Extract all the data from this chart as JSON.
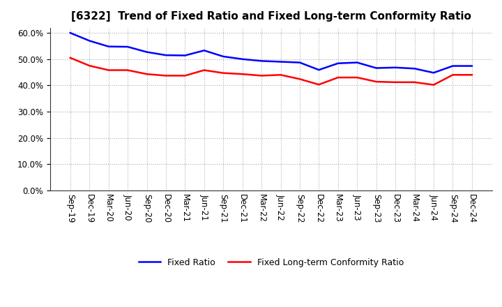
{
  "title": "[6322]  Trend of Fixed Ratio and Fixed Long-term Conformity Ratio",
  "x_labels": [
    "Sep-19",
    "Dec-19",
    "Mar-20",
    "Jun-20",
    "Sep-20",
    "Dec-20",
    "Mar-21",
    "Jun-21",
    "Sep-21",
    "Dec-21",
    "Mar-22",
    "Jun-22",
    "Sep-22",
    "Dec-22",
    "Mar-23",
    "Jun-23",
    "Sep-23",
    "Dec-23",
    "Mar-24",
    "Jun-24",
    "Sep-24",
    "Dec-24"
  ],
  "fixed_ratio": [
    0.6,
    0.57,
    0.548,
    0.547,
    0.527,
    0.515,
    0.514,
    0.533,
    0.51,
    0.5,
    0.493,
    0.49,
    0.487,
    0.459,
    0.484,
    0.487,
    0.466,
    0.468,
    0.464,
    0.448,
    0.474,
    0.474
  ],
  "fixed_lt_ratio": [
    0.505,
    0.475,
    0.458,
    0.458,
    0.443,
    0.437,
    0.437,
    0.458,
    0.447,
    0.443,
    0.437,
    0.44,
    0.424,
    0.403,
    0.43,
    0.43,
    0.414,
    0.412,
    0.412,
    0.402,
    0.44,
    0.44
  ],
  "fixed_ratio_color": "#0000FF",
  "fixed_lt_ratio_color": "#FF0000",
  "ylim": [
    0.0,
    0.62
  ],
  "yticks": [
    0.0,
    0.1,
    0.2,
    0.3,
    0.4,
    0.5,
    0.6
  ],
  "background_color": "#FFFFFF",
  "plot_bg_color": "#FFFFFF",
  "grid_color": "#AAAAAA",
  "legend_fixed_ratio": "Fixed Ratio",
  "legend_fixed_lt_ratio": "Fixed Long-term Conformity Ratio",
  "line_width": 1.8,
  "title_fontsize": 11,
  "tick_fontsize": 8.5,
  "legend_fontsize": 9
}
